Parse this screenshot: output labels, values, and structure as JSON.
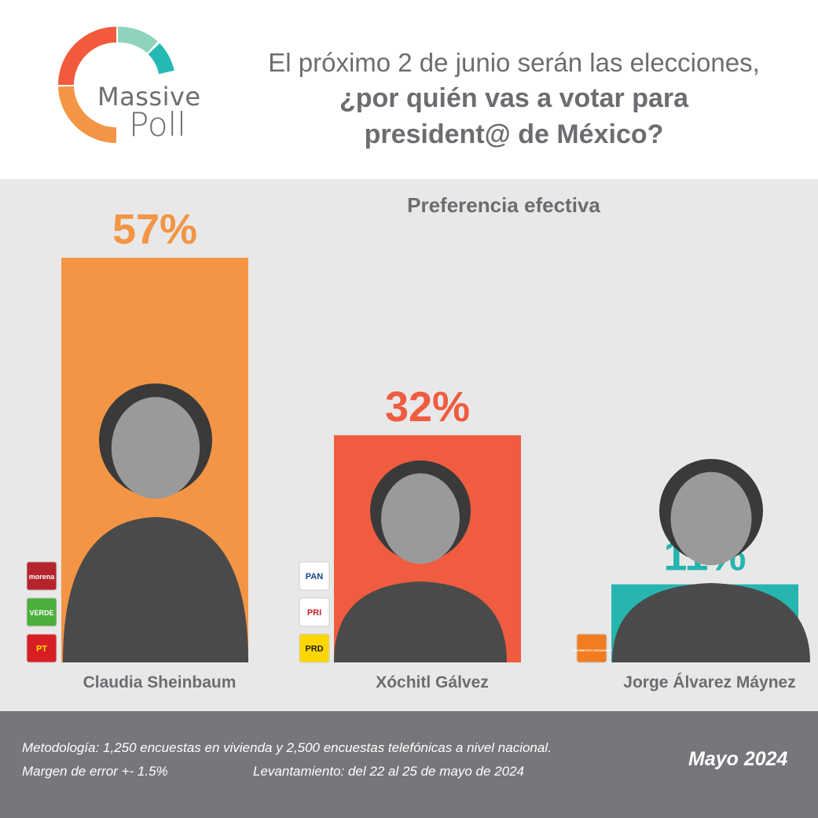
{
  "brand": {
    "logo_word1": "Massive",
    "logo_word2": "Poll",
    "ring_colors": [
      "#f15a3b",
      "#8fd3bd",
      "#25b9b4",
      "#f39545"
    ]
  },
  "headline": {
    "line1": "El próximo 2 de junio serán las elecciones,",
    "line2": "¿por quién vas a votar para",
    "line3": "president@ de México?"
  },
  "chart_data": {
    "type": "bar",
    "title": "Preferencia efectiva",
    "categories": [
      "Claudia Sheinbaum",
      "Xóchitl Gálvez",
      "Jorge Álvarez Máynez"
    ],
    "values": [
      57,
      32,
      11
    ],
    "value_labels": [
      "57%",
      "32%",
      "11%"
    ],
    "colors": [
      "#f39545",
      "#f05c40",
      "#26b5af"
    ],
    "ylim": [
      0,
      57
    ],
    "grid": false,
    "party_logos": [
      [
        {
          "name": "morena-logo",
          "text": "morena",
          "bg": "#b5232c",
          "fg": "#ffffff"
        },
        {
          "name": "verde-logo",
          "text": "VERDE",
          "bg": "#4caf3b",
          "fg": "#ffffff"
        },
        {
          "name": "pt-logo",
          "text": "PT",
          "bg": "#d71e24",
          "fg": "#ffe000"
        }
      ],
      [
        {
          "name": "pan-logo",
          "text": "PAN",
          "bg": "#ffffff",
          "fg": "#1d3f8f"
        },
        {
          "name": "pri-logo",
          "text": "PRI",
          "bg": "#ffffff",
          "fg": "#d1232a"
        },
        {
          "name": "prd-logo",
          "text": "PRD",
          "bg": "#ffd700",
          "fg": "#222222"
        }
      ],
      [
        {
          "name": "movimiento-ciudadano-logo",
          "text": "MOVIMIENTO CIUDADANO",
          "bg": "#f27d20",
          "fg": "#ffffff"
        }
      ]
    ]
  },
  "footer": {
    "methodology": "Metodología: 1,250 encuestas en vivienda y 2,500 encuestas telefónicas a nivel nacional.",
    "margin": "Margen de error +- 1.5%",
    "fieldwork": "Levantamiento: del 22 al 25 de mayo de 2024",
    "date": "Mayo 2024"
  }
}
